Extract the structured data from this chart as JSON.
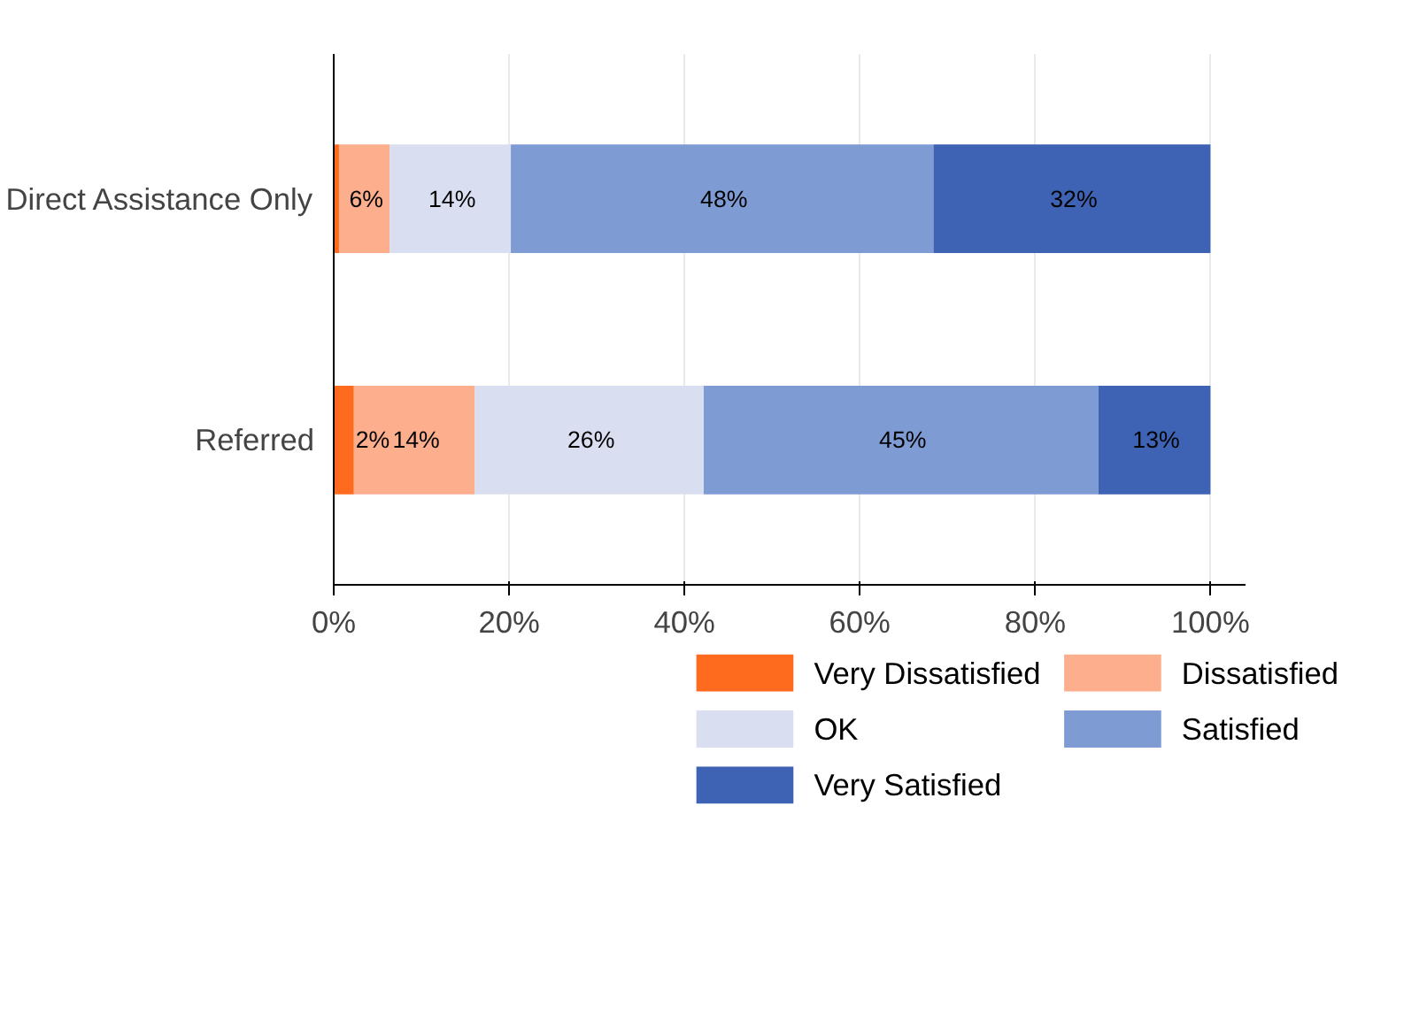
{
  "chart_data": {
    "type": "bar",
    "orientation": "horizontal",
    "stacked": true,
    "categories": [
      "Direct Assistance Only",
      "Referred"
    ],
    "series": [
      {
        "name": "Very Dissatisfied",
        "color": "#fe6a1e",
        "values": [
          0.6,
          2.3
        ],
        "value_labels": [
          null,
          "2%"
        ]
      },
      {
        "name": "Dissatisfied",
        "color": "#fcae8d",
        "values": [
          5.8,
          13.8
        ],
        "value_labels": [
          "6%",
          "14%"
        ]
      },
      {
        "name": "OK",
        "color": "#d9dff0",
        "values": [
          13.8,
          26.1
        ],
        "value_labels": [
          "14%",
          "26%"
        ]
      },
      {
        "name": "Satisfied",
        "color": "#7f9bd3",
        "values": [
          48.2,
          45.0
        ],
        "value_labels": [
          "48%",
          "45%"
        ]
      },
      {
        "name": "Very Satisfied",
        "color": "#3e63b4",
        "values": [
          31.6,
          12.8
        ],
        "value_labels": [
          "32%",
          "13%"
        ]
      }
    ],
    "xlim": [
      0,
      104
    ],
    "xticks": [
      {
        "value": 0,
        "label": "0%"
      },
      {
        "value": 20,
        "label": "20%"
      },
      {
        "value": 40,
        "label": "40%"
      },
      {
        "value": 60,
        "label": "60%"
      },
      {
        "value": 80,
        "label": "80%"
      },
      {
        "value": 100,
        "label": "100%"
      }
    ],
    "grid": "x",
    "legend": "bottom"
  }
}
